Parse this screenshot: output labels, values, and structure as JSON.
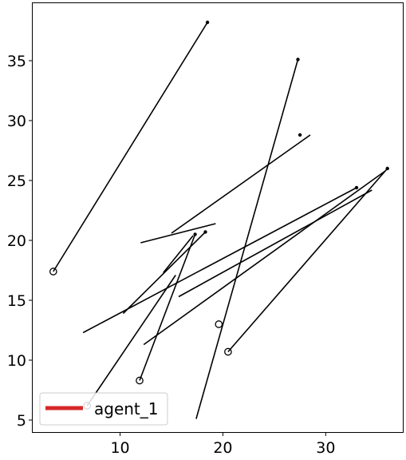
{
  "chart_data": {
    "type": "line",
    "title": "",
    "xlabel": "",
    "ylabel": "",
    "xlim": [
      1.5,
      37.5
    ],
    "ylim": [
      4.0,
      39.8
    ],
    "xticks": [
      10,
      20,
      30
    ],
    "yticks": [
      5,
      10,
      15,
      20,
      25,
      30,
      35
    ],
    "grid": false,
    "legend": {
      "placement": "lower-left",
      "entries": [
        {
          "label": "agent_1",
          "color": "#d62728"
        }
      ]
    },
    "series": [
      {
        "name": "agent_1",
        "color": "#000000",
        "points": [
          [
            3.5,
            17.4
          ],
          [
            18.5,
            38.2
          ],
          [
            15.0,
            20.6
          ],
          [
            28.5,
            28.8
          ],
          [
            6.4,
            12.3
          ],
          [
            33.0,
            24.4
          ],
          [
            17.4,
            5.1
          ],
          [
            27.3,
            35.1
          ],
          [
            14.2,
            17.3
          ],
          [
            17.1,
            20.4
          ],
          [
            12.0,
            19.8
          ],
          [
            19.3,
            21.4
          ],
          [
            10.3,
            13.9
          ],
          [
            18.3,
            20.7
          ],
          [
            11.9,
            8.3
          ],
          [
            17.3,
            20.5
          ],
          [
            6.8,
            6.2
          ],
          [
            15.4,
            17.1
          ],
          [
            35.8,
            25.8
          ],
          [
            12.3,
            11.3
          ],
          [
            34.5,
            24.2
          ],
          [
            15.7,
            15.3
          ],
          [
            36.0,
            26.0
          ],
          [
            20.5,
            10.7
          ]
        ]
      }
    ],
    "start_markers": [
      [
        3.5,
        17.4
      ],
      [
        11.9,
        8.3
      ],
      [
        19.6,
        13.0
      ],
      [
        20.5,
        10.7
      ],
      [
        6.8,
        6.2
      ]
    ],
    "arrow_markers": [
      [
        18.5,
        38.2
      ],
      [
        27.3,
        35.1
      ],
      [
        27.5,
        28.8
      ],
      [
        33.0,
        24.4
      ],
      [
        36.0,
        26.0
      ],
      [
        17.3,
        20.5
      ],
      [
        18.3,
        20.7
      ]
    ]
  }
}
